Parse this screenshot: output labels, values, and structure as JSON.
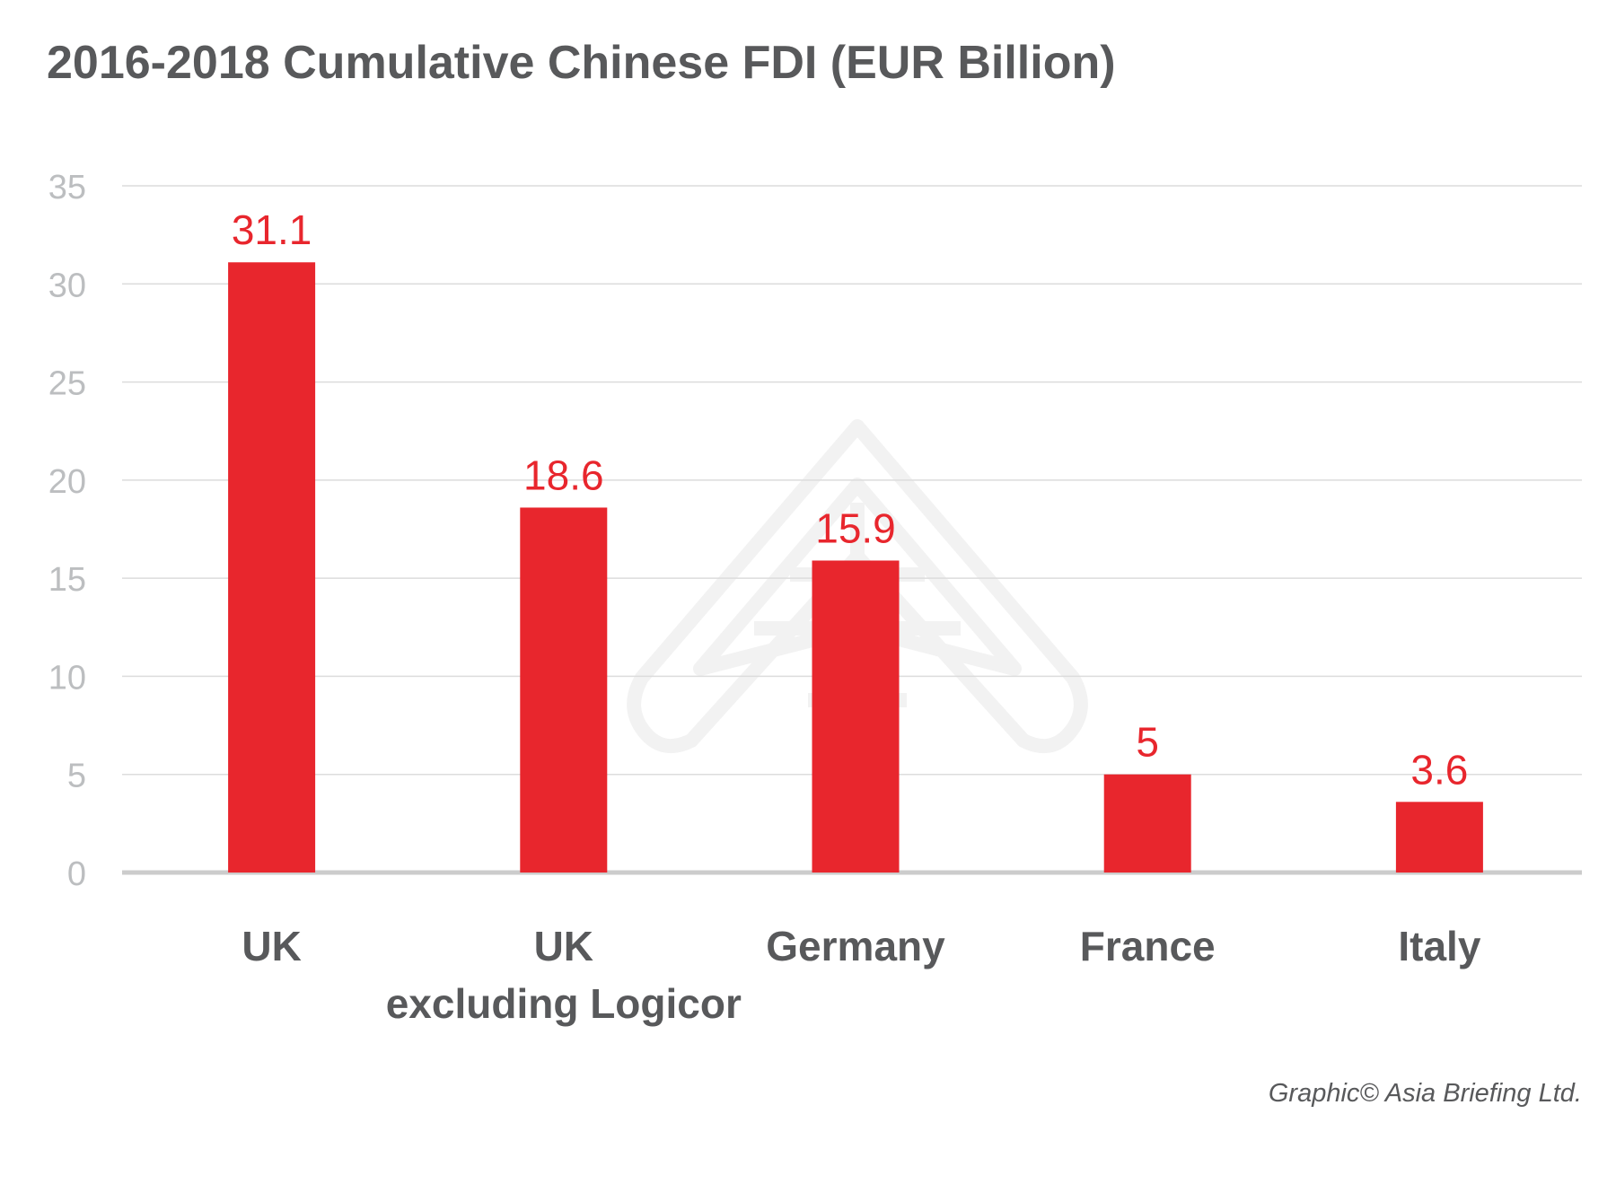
{
  "colors": {
    "bar": "#e8262d",
    "value_label": "#e8262d",
    "axis_text": "#bcbec0",
    "category_text": "#58595b",
    "grid": "#dcdcdc",
    "baseline": "#cccccc",
    "watermark": "#f2f2f2"
  },
  "chart_data": {
    "type": "bar",
    "title": "2016-2018 Cumulative Chinese FDI (EUR Billion)",
    "xlabel": "",
    "ylabel": "",
    "categories": [
      [
        "UK"
      ],
      [
        "UK",
        "excluding Logicor"
      ],
      [
        "Germany"
      ],
      [
        "France"
      ],
      [
        "Italy"
      ]
    ],
    "values": [
      31.1,
      18.6,
      15.9,
      5,
      3.6
    ],
    "value_labels": [
      "31.1",
      "18.6",
      "15.9",
      "5",
      "3.6"
    ],
    "ylim": [
      0,
      35
    ],
    "yticks": [
      0,
      5,
      10,
      15,
      20,
      25,
      30,
      35
    ],
    "grid": true,
    "legend": "none"
  },
  "footer": {
    "credit": "Graphic© Asia Briefing Ltd."
  },
  "watermark": {
    "icon": "asia-briefing-logo-icon"
  }
}
